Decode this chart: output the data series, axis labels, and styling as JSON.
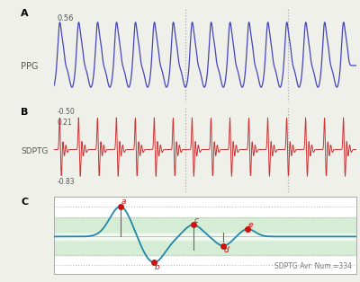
{
  "ppg_ymax": "0.56",
  "ppg_label": "PPG",
  "sdptg_top": "-0.50",
  "sdptg_mid": "0.21",
  "sdptg_ymin": "-0.83",
  "sdptg_label": "SDPTG",
  "panel_a": "A",
  "panel_b": "B",
  "panel_c": "C",
  "vline1": 0.435,
  "vline2": 0.775,
  "ppg_color": "#4444bb",
  "sdptg_color": "#cc3333",
  "wave_color": "#2288aa",
  "point_color": "#cc1111",
  "annotation_text": "SDPTG Avr. Num.=334",
  "band_light_color": "#e8f5e8",
  "band_mid_color": "#d0ebd0",
  "dotted_line_color": "#bbbbbb",
  "bg_color": "#f0f0ea",
  "panel_c_bg": "#ffffff"
}
